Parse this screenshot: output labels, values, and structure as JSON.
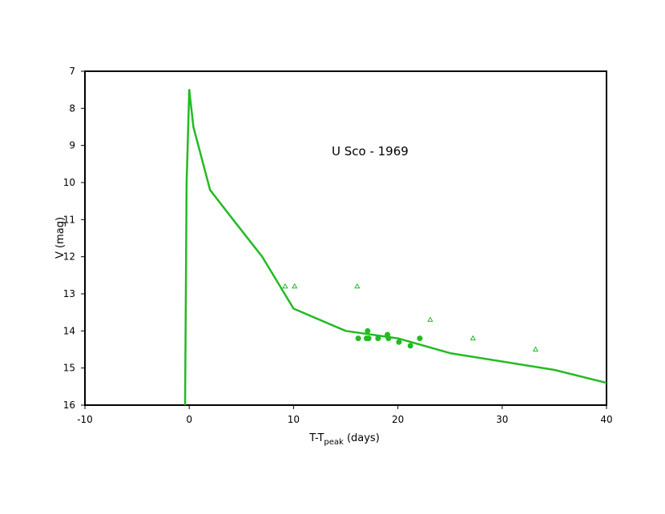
{
  "chart_data": {
    "type": "line",
    "title": "",
    "annotation": "U Sco - 1969",
    "xlabel": {
      "main": "T-T",
      "sub": "peak",
      "suffix": " (days)"
    },
    "ylabel": "V (mag)",
    "xlim": [
      -10,
      40
    ],
    "ylim": [
      7,
      16
    ],
    "y_inverted": true,
    "grid": false,
    "x_ticks": [
      -10,
      0,
      10,
      20,
      30,
      40
    ],
    "y_ticks": [
      7,
      8,
      9,
      10,
      11,
      12,
      13,
      14,
      15,
      16
    ],
    "color": "#22bb22",
    "series": [
      {
        "kind": "line",
        "x": [
          -0.4,
          -0.3,
          -0.25,
          -0.2,
          0.0,
          0.4,
          2.0,
          4.2,
          7.0,
          8.5,
          10.0,
          15.0,
          20.0,
          25.0,
          35.0,
          40.0
        ],
        "y": [
          16.0,
          12.0,
          10.0,
          9.5,
          7.5,
          8.5,
          10.2,
          11.0,
          12.0,
          12.7,
          13.4,
          14.0,
          14.2,
          14.6,
          15.05,
          15.4
        ]
      },
      {
        "kind": "filled-circle",
        "x": [
          16.2,
          17.0,
          17.1,
          17.2,
          18.1,
          19.0,
          19.1,
          20.1,
          21.2,
          22.1
        ],
        "y": [
          14.2,
          14.2,
          14.0,
          14.2,
          14.2,
          14.1,
          14.2,
          14.3,
          14.4,
          14.2
        ]
      },
      {
        "kind": "open-triangle",
        "x": [
          9.2,
          10.1,
          16.1,
          23.1,
          27.2,
          33.2
        ],
        "y": [
          12.8,
          12.8,
          12.8,
          13.7,
          14.2,
          14.5
        ]
      }
    ]
  }
}
